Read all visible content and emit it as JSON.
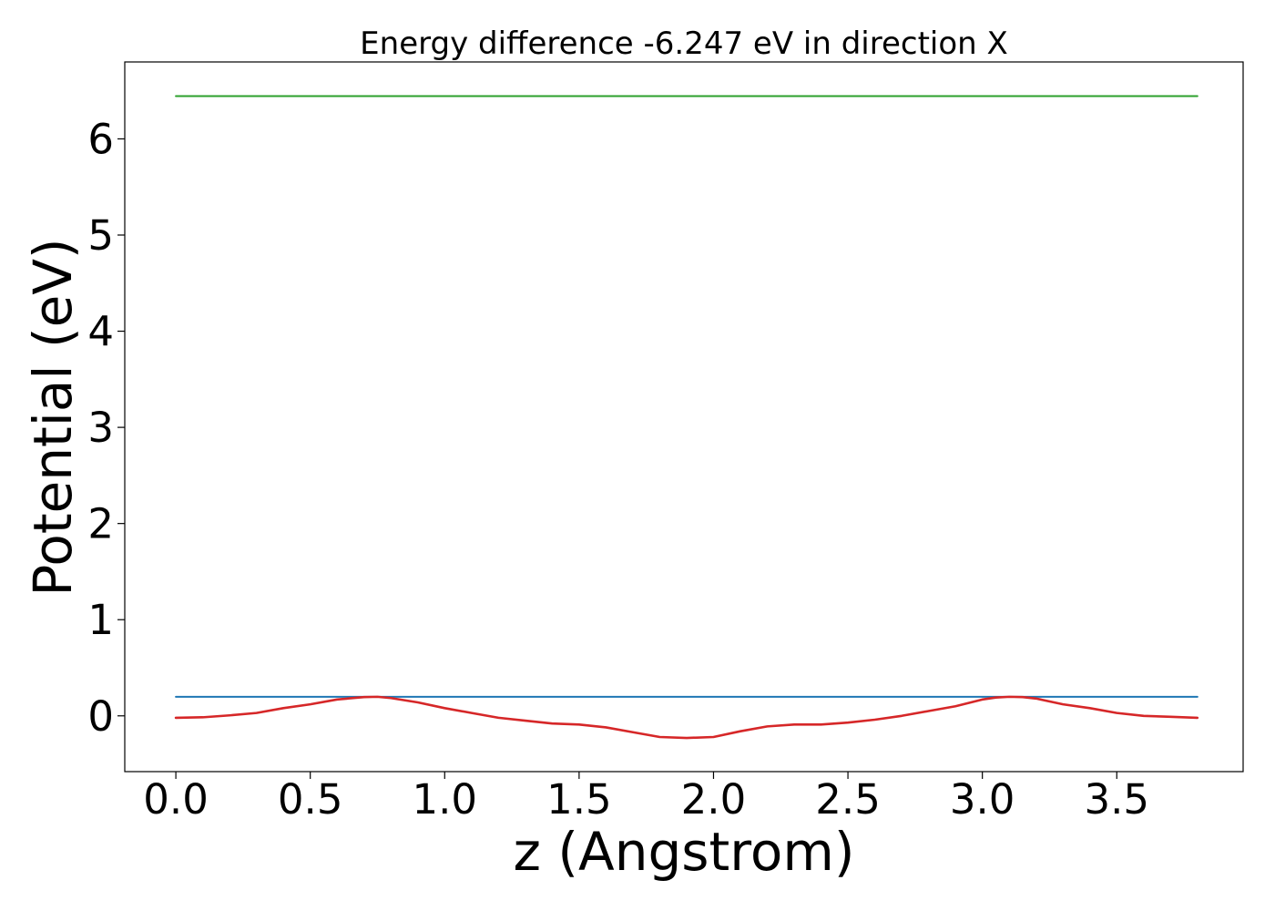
{
  "chart_data": {
    "type": "line",
    "title": "Energy difference -6.247 eV in direction X",
    "xlabel": "z (Angstrom)",
    "ylabel": "Potential (eV)",
    "xlim": [
      -0.19,
      3.97
    ],
    "ylim": [
      -0.58,
      6.8
    ],
    "grid": false,
    "x_ticks": [
      0.0,
      0.5,
      1.0,
      1.5,
      2.0,
      2.5,
      3.0,
      3.5
    ],
    "x_tick_labels": [
      "0.0",
      "0.5",
      "1.0",
      "1.5",
      "2.0",
      "2.5",
      "3.0",
      "3.5"
    ],
    "y_ticks": [
      0,
      1,
      2,
      3,
      4,
      5,
      6
    ],
    "y_tick_labels": [
      "0",
      "1",
      "2",
      "3",
      "4",
      "5",
      "6"
    ],
    "series": [
      {
        "color": "#2ca02c",
        "x": [
          0.0,
          3.8
        ],
        "y": [
          6.445,
          6.445
        ]
      },
      {
        "color": "#1f77b4",
        "x": [
          0.0,
          3.8
        ],
        "y": [
          0.198,
          0.198
        ]
      },
      {
        "color": "#d62728",
        "x": [
          0.0,
          0.1,
          0.2,
          0.3,
          0.4,
          0.5,
          0.6,
          0.7,
          0.75,
          0.8,
          0.9,
          1.0,
          1.1,
          1.2,
          1.3,
          1.4,
          1.5,
          1.6,
          1.7,
          1.8,
          1.9,
          2.0,
          2.1,
          2.2,
          2.3,
          2.4,
          2.5,
          2.6,
          2.7,
          2.8,
          2.9,
          3.0,
          3.05,
          3.1,
          3.15,
          3.2,
          3.3,
          3.4,
          3.5,
          3.6,
          3.7,
          3.8
        ],
        "y": [
          -0.02,
          -0.015,
          0.005,
          0.03,
          0.08,
          0.12,
          0.17,
          0.195,
          0.198,
          0.185,
          0.14,
          0.08,
          0.03,
          -0.02,
          -0.05,
          -0.08,
          -0.09,
          -0.12,
          -0.17,
          -0.22,
          -0.23,
          -0.22,
          -0.16,
          -0.11,
          -0.09,
          -0.09,
          -0.07,
          -0.04,
          0.0,
          0.05,
          0.1,
          0.17,
          0.19,
          0.198,
          0.195,
          0.18,
          0.12,
          0.08,
          0.03,
          0.0,
          -0.01,
          -0.02
        ]
      }
    ]
  }
}
